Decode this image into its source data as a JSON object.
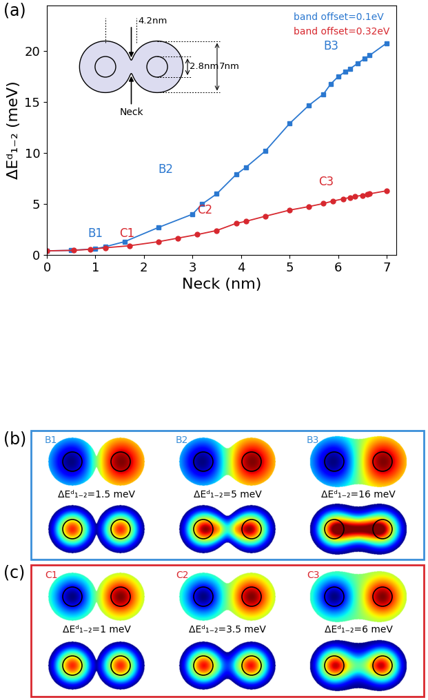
{
  "chart_data": {
    "type": "line",
    "title": "(a)",
    "x_label": "Neck (nm)",
    "y_label": "ΔEᵈ₁₋₂ (meV)",
    "xlim": [
      0,
      7.2
    ],
    "ylim": [
      0,
      24.5
    ],
    "xticks": [
      0,
      1,
      2,
      3,
      4,
      5,
      6,
      7
    ],
    "yticks": [
      0,
      5,
      10,
      15,
      20
    ],
    "legend": "upper right",
    "series": [
      {
        "name": "band offset=0.1eV",
        "color": "#2b78d0",
        "marker": "square",
        "line_style": "solid",
        "x": [
          0,
          0.5,
          1.0,
          1.2,
          1.6,
          2.3,
          3.0,
          3.2,
          3.5,
          3.9,
          4.1,
          4.5,
          5.0,
          5.4,
          5.7,
          5.85,
          6.0,
          6.15,
          6.25,
          6.4,
          6.55,
          6.65,
          7.0
        ],
        "values": [
          0.4,
          0.45,
          0.6,
          0.8,
          1.3,
          2.7,
          4.0,
          5.0,
          6.0,
          7.9,
          8.6,
          10.2,
          12.9,
          14.7,
          15.8,
          16.8,
          17.5,
          18.0,
          18.3,
          18.8,
          19.3,
          19.6,
          20.8
        ]
      },
      {
        "name": "band offset=0.32eV",
        "color": "#d7282f",
        "marker": "circle",
        "line_style": "solid",
        "x": [
          0,
          0.55,
          0.9,
          1.2,
          1.7,
          2.3,
          2.7,
          3.1,
          3.5,
          3.9,
          4.1,
          4.5,
          5.0,
          5.4,
          5.7,
          5.9,
          6.1,
          6.25,
          6.35,
          6.5,
          6.6,
          6.65,
          7.0
        ],
        "values": [
          0.4,
          0.45,
          0.55,
          0.7,
          0.9,
          1.3,
          1.65,
          2.0,
          2.4,
          3.1,
          3.3,
          3.8,
          4.4,
          4.75,
          5.05,
          5.3,
          5.5,
          5.65,
          5.75,
          5.85,
          5.95,
          6.0,
          6.3
        ]
      }
    ],
    "annotations": [
      {
        "text": "B1",
        "x": 1.0,
        "y": 2.1,
        "color": "#2b78d0"
      },
      {
        "text": "C1",
        "x": 1.65,
        "y": 2.1,
        "color": "#d7282f"
      },
      {
        "text": "B2",
        "x": 2.45,
        "y": 8.4,
        "color": "#2b78d0"
      },
      {
        "text": "C2",
        "x": 3.25,
        "y": 4.4,
        "color": "#d7282f"
      },
      {
        "text": "B3",
        "x": 5.85,
        "y": 20.5,
        "color": "#2b78d0"
      },
      {
        "text": "C3",
        "x": 5.75,
        "y": 7.2,
        "color": "#d7282f"
      }
    ]
  },
  "inset": {
    "labels": {
      "width": "4.2nm",
      "core": "2.8nm",
      "diameter": "7nm",
      "neck": "Neck"
    }
  },
  "panels": [
    {
      "label": "(b)",
      "color": "#3b8fd9",
      "items": [
        {
          "name": "B1",
          "text": "ΔEᵈ₁₋₂=1.5 meV"
        },
        {
          "name": "B2",
          "text": "ΔEᵈ₁₋₂=5 meV"
        },
        {
          "name": "B3",
          "text": "ΔEᵈ₁₋₂=16 meV"
        }
      ]
    },
    {
      "label": "(c)",
      "color": "#d9282f",
      "items": [
        {
          "name": "C1",
          "text": "ΔEᵈ₁₋₂=1 meV"
        },
        {
          "name": "C2",
          "text": "ΔEᵈ₁₋₂=3.5 meV"
        },
        {
          "name": "C3",
          "text": "ΔEᵈ₁₋₂=6 meV"
        }
      ]
    }
  ]
}
